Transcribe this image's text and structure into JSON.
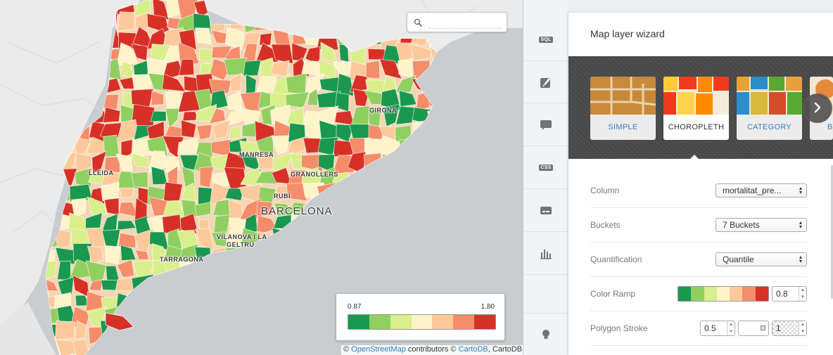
{
  "map": {
    "search_placeholder": "",
    "cities": [
      {
        "id": "girona",
        "label": "GIRONA"
      },
      {
        "id": "manresa",
        "label": "MANRESA"
      },
      {
        "id": "lleida",
        "label": "LLEIDA"
      },
      {
        "id": "granollers",
        "label": "GRANOLLERS"
      },
      {
        "id": "rubi",
        "label": "RUBÍ"
      },
      {
        "id": "barcelona",
        "label": "BARCELONA"
      },
      {
        "id": "vilanova1",
        "label": "VILANOVA I LA"
      },
      {
        "id": "vilanova2",
        "label": "GELTRÚ"
      },
      {
        "id": "tarragona",
        "label": "TARRAGONA"
      }
    ],
    "legend": {
      "min": "0.87",
      "max": "1.80",
      "colors": [
        "#1a9850",
        "#91cf60",
        "#d9ef8b",
        "#fff3c9",
        "#fdc99a",
        "#f58c6a",
        "#d73027"
      ]
    },
    "attribution": {
      "prefix": "© ",
      "osm": "OpenStreetMap",
      "mid": " contributors © ",
      "cartodb": "CartoDB",
      "suffix": ", CartoDB"
    },
    "colors": {
      "sea": "#c9cdd0",
      "land": "#e8e8e8"
    }
  },
  "toolbar": {
    "items": [
      {
        "id": "sql",
        "icon": "sql-icon",
        "label": "SQL"
      },
      {
        "id": "wizard",
        "icon": "brush-icon"
      },
      {
        "id": "infowindow",
        "icon": "speech-bubble-icon"
      },
      {
        "id": "css",
        "icon": "css-icon",
        "label": "CSS"
      },
      {
        "id": "legends",
        "icon": "legend-icon"
      },
      {
        "id": "filters",
        "icon": "bar-chart-icon"
      },
      {
        "id": "help",
        "icon": "lightbulb-icon"
      }
    ]
  },
  "panel": {
    "title": "Map layer wizard",
    "wizard_types": [
      {
        "id": "simple",
        "label": "SIMPLE",
        "active": false
      },
      {
        "id": "choropleth",
        "label": "CHOROPLETH",
        "active": true
      },
      {
        "id": "category",
        "label": "CATEGORY",
        "active": false
      },
      {
        "id": "bubble",
        "label": "B",
        "active": false
      }
    ],
    "fields": {
      "column": {
        "label": "Column",
        "value": "mortalitat_pre..."
      },
      "buckets": {
        "label": "Buckets",
        "value": "7 Buckets"
      },
      "quantification": {
        "label": "Quantification",
        "value": "Quantile"
      },
      "color_ramp": {
        "label": "Color Ramp",
        "colors": [
          "#1a9850",
          "#91cf60",
          "#d9ef8b",
          "#fff3c9",
          "#fdc99a",
          "#f58c6a",
          "#d73027"
        ],
        "opacity": "0.8"
      },
      "polygon_stroke": {
        "label": "Polygon Stroke",
        "width": "0.5",
        "opacity": "1"
      }
    }
  }
}
